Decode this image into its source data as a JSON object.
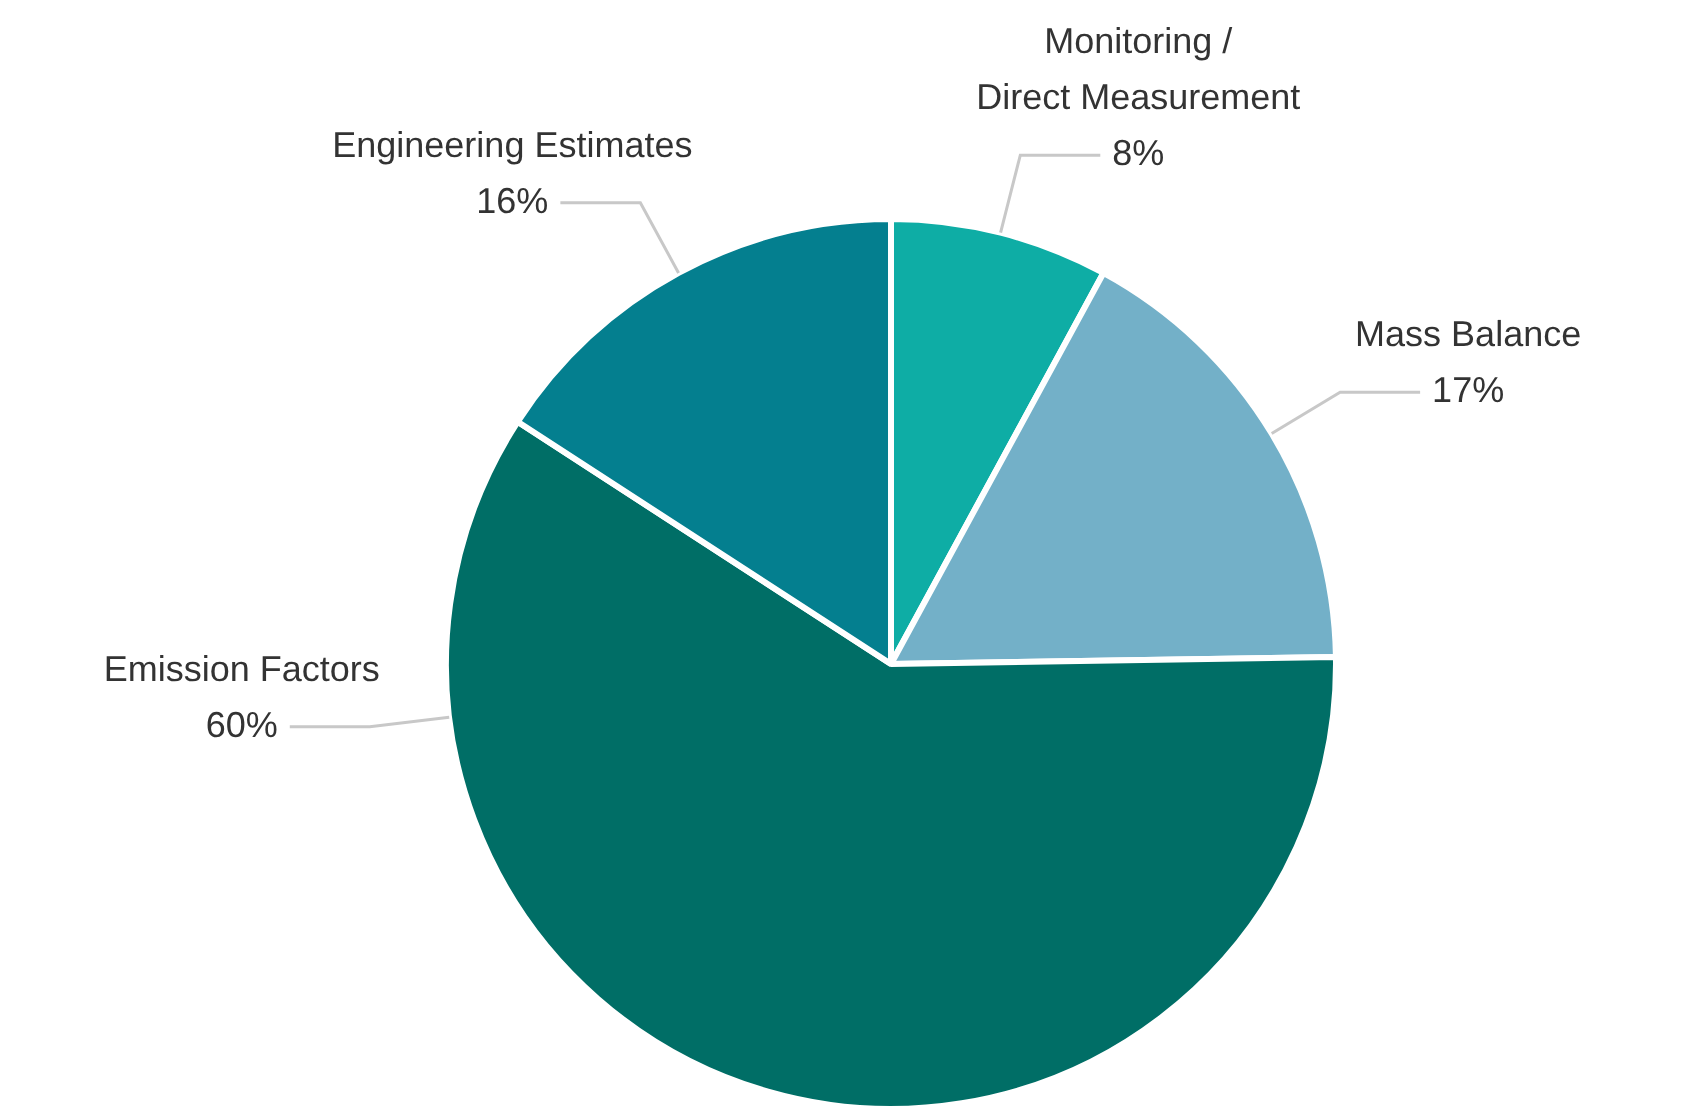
{
  "chart_data": {
    "type": "pie",
    "categories": [
      "Monitoring /\nDirect Measurement",
      "Mass Balance",
      "Emission Factors",
      "Engineering Estimates"
    ],
    "values": [
      8,
      17,
      60,
      16
    ],
    "colors": [
      "#0eada5",
      "#73b0c8",
      "#006e66",
      "#047f8f"
    ],
    "value_labels": [
      "8%",
      "17%",
      "60%",
      "16%"
    ],
    "legend": false
  }
}
